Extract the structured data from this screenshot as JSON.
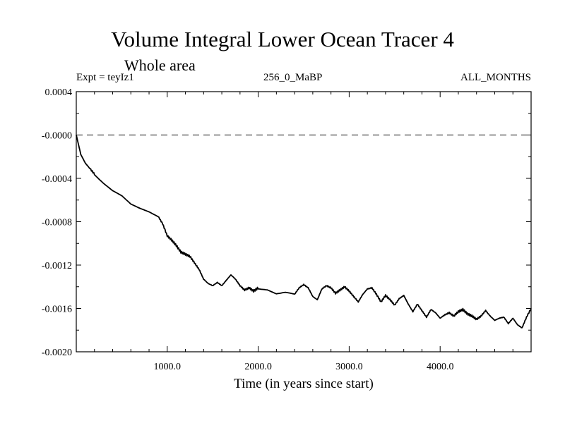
{
  "chart_data": {
    "type": "line",
    "title": "Volume Integral Lower Ocean Tracer 4",
    "subtitle": "Whole area",
    "header_left": "Expt = teyIz1",
    "header_center": "256_0_MaBP",
    "header_right": "ALL_MONTHS",
    "xlabel": "Time (in years since start)",
    "ylabel": "",
    "xlim": [
      0,
      5000
    ],
    "ylim": [
      -0.002,
      0.0004
    ],
    "x_ticks": [
      1000,
      2000,
      3000,
      4000
    ],
    "x_tick_labels": [
      "1000.0",
      "2000.0",
      "3000.0",
      "4000.0"
    ],
    "y_ticks": [
      0.0004,
      0.0,
      -0.0004,
      -0.0008,
      -0.0012,
      -0.0016,
      -0.002
    ],
    "y_tick_labels": [
      "0.0004",
      "-0.0000",
      "-0.0004",
      "-0.0008",
      "-0.0012",
      "-0.0016",
      "-0.0020"
    ],
    "reference_line": {
      "y": 0.0,
      "style": "dashed"
    },
    "series": [
      {
        "name": "Lower Ocean Tracer 4",
        "x": [
          0,
          50,
          100,
          150,
          200,
          300,
          400,
          500,
          600,
          700,
          800,
          900,
          950,
          1000,
          1050,
          1100,
          1150,
          1200,
          1250,
          1300,
          1350,
          1400,
          1450,
          1500,
          1550,
          1600,
          1650,
          1700,
          1750,
          1800,
          1850,
          1900,
          1950,
          2000,
          2100,
          2200,
          2300,
          2400,
          2450,
          2500,
          2550,
          2600,
          2650,
          2700,
          2750,
          2800,
          2850,
          2900,
          2950,
          3000,
          3050,
          3100,
          3150,
          3200,
          3250,
          3300,
          3350,
          3400,
          3450,
          3500,
          3550,
          3600,
          3650,
          3700,
          3750,
          3800,
          3850,
          3900,
          3950,
          4000,
          4050,
          4100,
          4150,
          4200,
          4250,
          4300,
          4350,
          4400,
          4450,
          4500,
          4550,
          4600,
          4650,
          4700,
          4750,
          4800,
          4850,
          4900,
          4950,
          5000
        ],
        "values": [
          0.0,
          -0.00018,
          -0.00026,
          -0.00031,
          -0.00036,
          -0.00044,
          -0.00051,
          -0.00056,
          -0.00064,
          -0.00068,
          -0.00071,
          -0.00075,
          -0.00082,
          -0.00093,
          -0.00097,
          -0.00102,
          -0.00108,
          -0.0011,
          -0.00112,
          -0.00118,
          -0.00124,
          -0.00133,
          -0.00137,
          -0.00139,
          -0.00136,
          -0.00139,
          -0.00134,
          -0.00129,
          -0.00133,
          -0.00139,
          -0.00143,
          -0.00141,
          -0.00144,
          -0.00141,
          -0.00142,
          -0.00146,
          -0.00145,
          -0.00147,
          -0.00141,
          -0.00138,
          -0.00141,
          -0.00149,
          -0.00152,
          -0.00142,
          -0.00139,
          -0.00141,
          -0.00146,
          -0.00143,
          -0.0014,
          -0.00144,
          -0.00149,
          -0.00154,
          -0.00147,
          -0.00142,
          -0.00141,
          -0.00147,
          -0.00154,
          -0.00148,
          -0.00152,
          -0.00157,
          -0.00151,
          -0.00148,
          -0.00156,
          -0.00163,
          -0.00156,
          -0.00162,
          -0.00168,
          -0.00161,
          -0.00164,
          -0.00169,
          -0.00166,
          -0.00164,
          -0.00167,
          -0.00163,
          -0.00161,
          -0.00165,
          -0.00167,
          -0.0017,
          -0.00167,
          -0.00162,
          -0.00167,
          -0.00171,
          -0.00169,
          -0.00168,
          -0.00174,
          -0.00169,
          -0.00175,
          -0.00178,
          -0.00168,
          -0.0016
        ]
      }
    ]
  }
}
